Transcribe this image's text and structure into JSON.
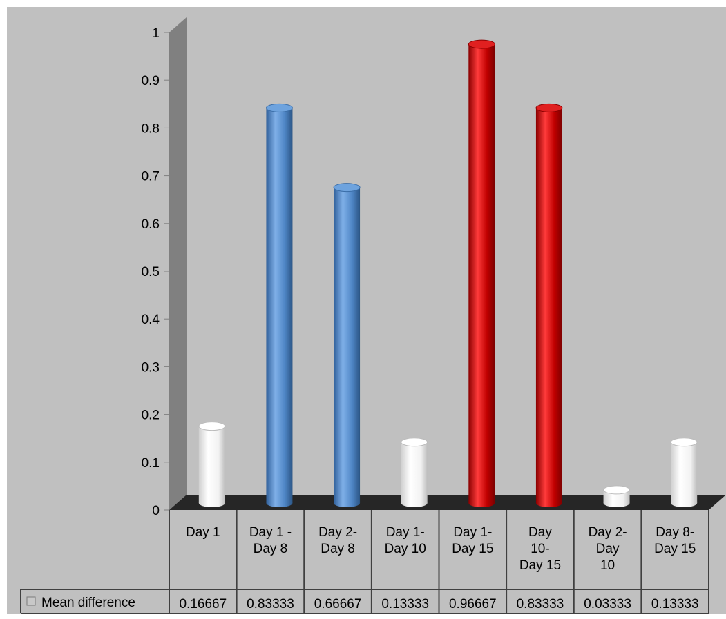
{
  "chart_data": {
    "type": "bar",
    "title": "",
    "xlabel": "",
    "ylabel": "",
    "ylim": [
      0,
      1
    ],
    "y_ticks": [
      "0",
      "0.1",
      "0.2",
      "0.3",
      "0.4",
      "0.5",
      "0.6",
      "0.7",
      "0.8",
      "0.9",
      "1"
    ],
    "grid": false,
    "legend": "data-table-left",
    "categories": [
      [
        "Day 1"
      ],
      [
        "Day 1 -",
        "Day 8"
      ],
      [
        "Day 2-",
        "Day 8"
      ],
      [
        "Day 1-",
        "Day 10"
      ],
      [
        "Day 1-",
        "Day 15"
      ],
      [
        "Day",
        "10-",
        "Day 15"
      ],
      [
        "Day 2-",
        "Day",
        "10"
      ],
      [
        "Day 8-",
        "Day 15"
      ]
    ],
    "series": [
      {
        "name": "Mean difference",
        "values": [
          0.16667,
          0.83333,
          0.66667,
          0.13333,
          0.96667,
          0.83333,
          0.03333,
          0.13333
        ],
        "value_labels": [
          "0.16667",
          "0.83333",
          "0.66667",
          "0.13333",
          "0.96667",
          "0.83333",
          "0.03333",
          "0.13333"
        ]
      }
    ],
    "bar_colors": [
      "#ffffff",
      "#4f86c6",
      "#4f86c6",
      "#ffffff",
      "#c00000",
      "#c00000",
      "#ffffff",
      "#ffffff"
    ],
    "colors": {
      "plot_background": "#c0c0c0",
      "back_wall": "#c0c0c0",
      "side_wall": "#808080",
      "floor": "#262626",
      "table_line": "#404040"
    }
  }
}
